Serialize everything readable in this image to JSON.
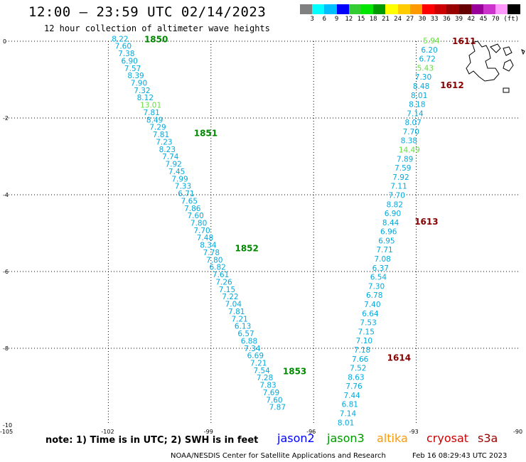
{
  "header": {
    "title": "12:00 — 23:59 UTC 02/14/2023",
    "subtitle": "12 hour collection of altimeter wave heights"
  },
  "legend": {
    "colors": [
      "#808080",
      "#00ffff",
      "#00bfff",
      "#0000ff",
      "#33cc33",
      "#00e600",
      "#009900",
      "#ffff00",
      "#ffcc00",
      "#ff9900",
      "#ff0000",
      "#cc0000",
      "#990000",
      "#660000",
      "#990099",
      "#cc33cc",
      "#ff99ff",
      "#000000"
    ],
    "labels": [
      "3",
      "6",
      "9",
      "12",
      "15",
      "18",
      "21",
      "24",
      "27",
      "30",
      "33",
      "36",
      "39",
      "42",
      "45",
      "70",
      "(ft)"
    ]
  },
  "note": "note:  1) Time is in UTC;  2) SWH is in feet",
  "satellites": [
    {
      "name": "jason2",
      "color": "#0000ff"
    },
    {
      "name": "jason3",
      "color": "#009900"
    },
    {
      "name": "altika",
      "color": "#ff9900"
    },
    {
      "name": "cryosat",
      "color": "#cc0000"
    },
    {
      "name": "s3a",
      "color": "#990000"
    }
  ],
  "footer": {
    "credit": "NOAA/NESDIS Center for Satellite Applications and Research",
    "timestamp": "Feb 16 08:29:43 UTC 2023"
  },
  "chart_data": {
    "type": "scatter",
    "xlim": [
      -105,
      -90
    ],
    "ylim": [
      -10,
      0
    ],
    "x_ticks": [
      "-105",
      "-102",
      "-99",
      "-96",
      "-93",
      "-90"
    ],
    "y_ticks": [
      "0",
      "-2",
      "-4",
      "-6",
      "-8",
      "-10"
    ],
    "grid": true,
    "series": [
      {
        "name": "jason3",
        "color": "#00aadd",
        "highlight_color": "#66dd44",
        "highlight_values": [
          "13.01"
        ],
        "values": [
          "8.22",
          "7.60",
          "7.38",
          "6.90",
          "7.57",
          "8.39",
          "7.90",
          "7.32",
          "8.12",
          "13.01",
          "7.81",
          "8.49",
          "7.29",
          "7.81",
          "7.23",
          "8.23",
          "7.74",
          "7.92",
          "7.45",
          "7.99",
          "7.33",
          "6.71",
          "7.65",
          "7.86",
          "7.60",
          "7.80",
          "7.70",
          "7.48",
          "8.34",
          "7.78",
          "7.80",
          "6.82",
          "7.61",
          "7.26",
          "7.15",
          "7.22",
          "7.04",
          "7.81",
          "7.21",
          "6.13",
          "6.57",
          "6.88",
          "7.34",
          "6.69",
          "7.21",
          "7.54",
          "7.28",
          "7.83",
          "7.69",
          "7.60",
          "7.87"
        ],
        "lon_start": -101.9,
        "lat_start": 0.05,
        "lon_end": -97.3,
        "lat_end": -9.55,
        "time_labels": [
          {
            "text": "1850",
            "lon": -100.95,
            "lat": 0.05
          },
          {
            "text": "1851",
            "lon": -99.5,
            "lat": -2.4
          },
          {
            "text": "1852",
            "lon": -98.3,
            "lat": -5.4
          },
          {
            "text": "1853",
            "lon": -96.9,
            "lat": -8.6
          }
        ],
        "time_color": "#008800"
      },
      {
        "name": "s3a",
        "color": "#00aadd",
        "highlight_color": "#66dd44",
        "highlight_values": [
          "5.94",
          "5.43",
          "14.49"
        ],
        "values": [
          "5.94",
          "6.20",
          "6.72",
          "5.43",
          "7.30",
          "8.48",
          "8.01",
          "8.18",
          "7.14",
          "8.07",
          "7.70",
          "8.38",
          "14.49",
          "7.89",
          "7.59",
          "7.92",
          "7.11",
          "7.70",
          "8.82",
          "6.90",
          "8.44",
          "6.96",
          "6.95",
          "7.71",
          "7.08",
          "6.37",
          "6.54",
          "7.30",
          "6.78",
          "7.40",
          "6.64",
          "7.53",
          "7.15",
          "7.10",
          "7.18",
          "7.66",
          "7.52",
          "8.63",
          "7.76",
          "7.44",
          "6.81",
          "7.14",
          "8.01"
        ],
        "lon_start": -92.8,
        "lat_start": 0.0,
        "lon_end": -95.3,
        "lat_end": -9.95,
        "time_labels": [
          {
            "text": "1611",
            "lon": -91.95,
            "lat": 0.0
          },
          {
            "text": "1612",
            "lon": -92.3,
            "lat": -1.15
          },
          {
            "text": "1613",
            "lon": -93.05,
            "lat": -4.7
          },
          {
            "text": "1614",
            "lon": -93.85,
            "lat": -8.25
          }
        ],
        "time_color": "#880000"
      }
    ]
  }
}
